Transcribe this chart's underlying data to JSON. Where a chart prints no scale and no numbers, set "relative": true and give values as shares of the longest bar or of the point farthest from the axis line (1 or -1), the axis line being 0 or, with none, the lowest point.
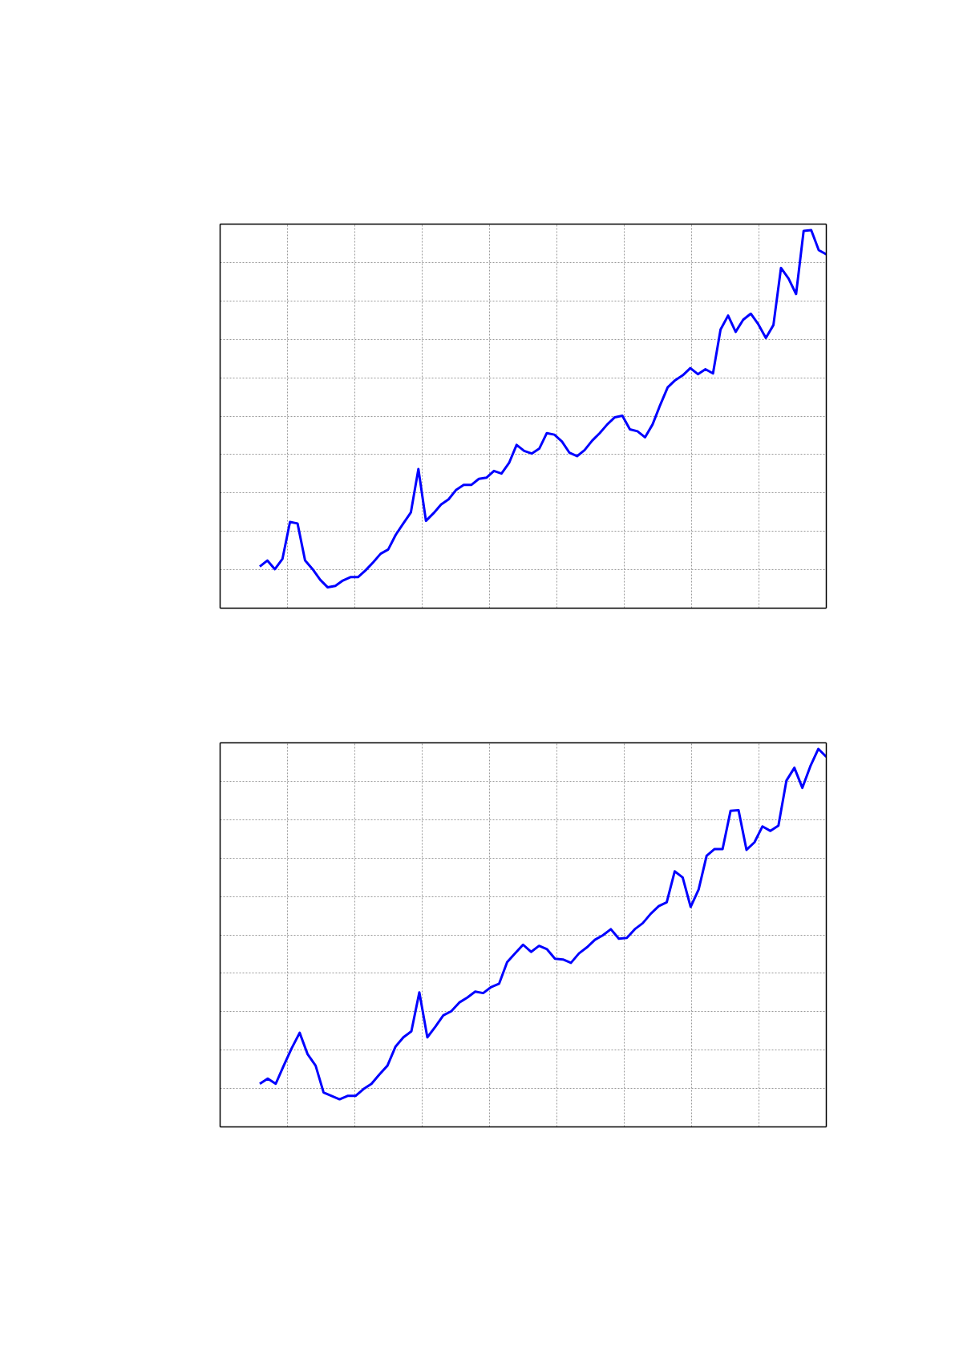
{
  "chart_data": [
    {
      "type": "line",
      "relative": true,
      "grid": true,
      "categories": [
        null,
        null,
        null,
        null,
        null,
        null,
        null,
        null,
        null,
        null,
        null,
        null,
        null,
        null,
        null,
        null,
        null,
        null,
        null,
        null,
        null,
        null,
        null,
        null,
        null,
        null,
        null,
        null,
        null,
        null,
        null,
        null,
        null,
        null,
        null,
        null,
        null,
        null,
        null,
        null,
        null,
        null,
        null,
        null,
        null,
        null,
        null,
        null,
        null,
        null,
        null,
        null,
        null,
        null,
        null,
        null,
        null,
        null,
        null,
        null,
        null,
        null,
        null,
        null,
        null,
        null,
        null,
        null,
        null,
        null,
        null,
        null,
        null,
        null,
        null,
        null
      ],
      "series": [
        {
          "color": "#0000ff",
          "values": [
            0.11,
            0.126,
            0.103,
            0.13,
            0.228,
            0.224,
            0.126,
            0.103,
            0.075,
            0.055,
            0.059,
            0.073,
            0.082,
            0.082,
            0.1,
            0.121,
            0.144,
            0.155,
            0.194,
            0.224,
            0.253,
            0.368,
            0.231,
            0.251,
            0.274,
            0.288,
            0.313,
            0.326,
            0.326,
            0.342,
            0.345,
            0.363,
            0.356,
            0.384,
            0.432,
            0.416,
            0.409,
            0.422,
            0.463,
            0.459,
            0.441,
            0.411,
            0.402,
            0.418,
            0.443,
            0.463,
            0.486,
            0.505,
            0.509,
            0.473,
            0.468,
            0.452,
            0.486,
            0.537,
            0.584,
            0.603,
            0.616,
            0.635,
            0.619,
            0.632,
            0.621,
            0.737,
            0.774,
            0.731,
            0.763,
            0.779,
            0.751,
            0.715,
            0.749,
            0.9,
            0.872,
            0.831,
            0.998,
            1,
            0.947,
            0.936
          ]
        }
      ]
    },
    {
      "type": "line",
      "relative": true,
      "grid": true,
      "categories": [
        null,
        null,
        null,
        null,
        null,
        null,
        null,
        null,
        null,
        null,
        null,
        null,
        null,
        null,
        null,
        null,
        null,
        null,
        null,
        null,
        null,
        null,
        null,
        null,
        null,
        null,
        null,
        null,
        null,
        null,
        null,
        null,
        null,
        null,
        null,
        null,
        null,
        null,
        null,
        null,
        null,
        null,
        null,
        null,
        null,
        null,
        null,
        null,
        null,
        null,
        null,
        null,
        null,
        null,
        null,
        null,
        null,
        null,
        null,
        null,
        null,
        null,
        null,
        null,
        null,
        null,
        null,
        null,
        null,
        null,
        null,
        null
      ],
      "series": [
        {
          "color": "#0000ff",
          "values": [
            0.114,
            0.128,
            0.114,
            0.162,
            0.208,
            0.249,
            0.192,
            0.162,
            0.091,
            0.082,
            0.073,
            0.082,
            0.082,
            0.1,
            0.114,
            0.139,
            0.162,
            0.212,
            0.237,
            0.253,
            0.356,
            0.237,
            0.265,
            0.295,
            0.306,
            0.329,
            0.342,
            0.358,
            0.354,
            0.37,
            0.379,
            0.436,
            0.459,
            0.482,
            0.463,
            0.479,
            0.47,
            0.445,
            0.443,
            0.434,
            0.459,
            0.475,
            0.495,
            0.507,
            0.523,
            0.498,
            0.5,
            0.523,
            0.539,
            0.564,
            0.584,
            0.594,
            0.676,
            0.66,
            0.582,
            0.628,
            0.717,
            0.735,
            0.735,
            0.836,
            0.838,
            0.733,
            0.753,
            0.795,
            0.783,
            0.797,
            0.916,
            0.95,
            0.897,
            0.954,
            1,
            0.979
          ]
        }
      ]
    }
  ]
}
